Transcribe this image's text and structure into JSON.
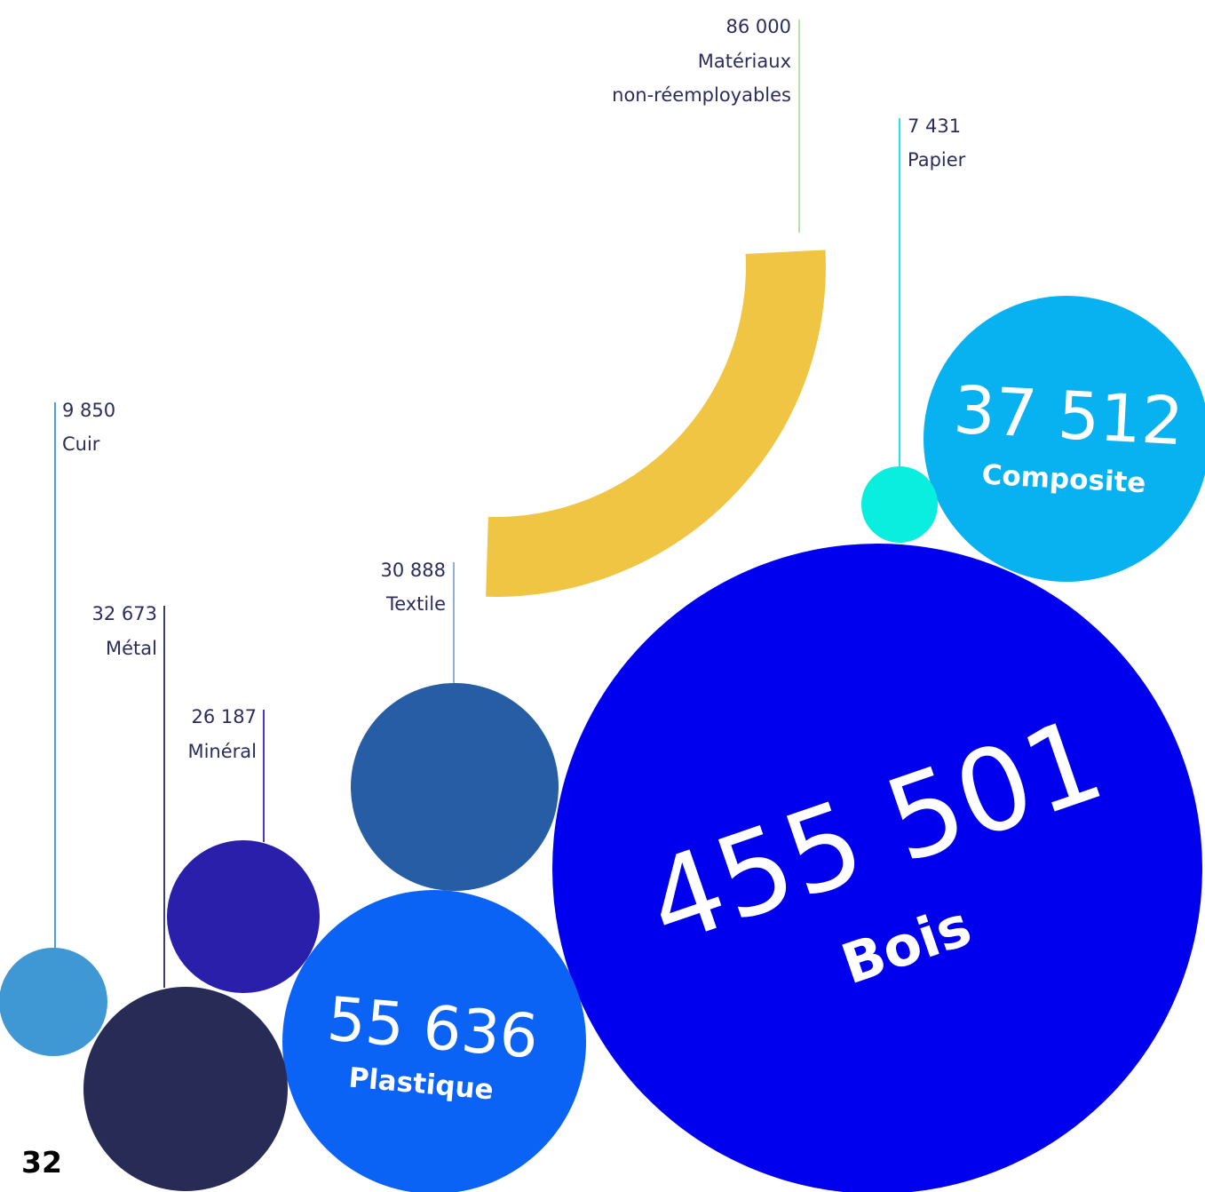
{
  "page_number": "32",
  "chart_data": {
    "type": "bubble",
    "items": [
      {
        "label": "Bois",
        "value_text": "455 501",
        "value": 455501,
        "color": "#0000ee",
        "display": "inside"
      },
      {
        "label": "Plastique",
        "value_text": "55 636",
        "value": 55636,
        "color": "#0b63f6",
        "display": "inside"
      },
      {
        "label": "Composite",
        "value_text": "37 512",
        "value": 37512,
        "color": "#08b2f0",
        "display": "inside"
      },
      {
        "label": "Métal",
        "value_text": "32 673",
        "value": 32673,
        "color": "#292b57",
        "display": "callout"
      },
      {
        "label": "Textile",
        "value_text": "30 888",
        "value": 30888,
        "color": "#265da4",
        "display": "callout"
      },
      {
        "label": "Minéral",
        "value_text": "26 187",
        "value": 26187,
        "color": "#2a1faa",
        "display": "callout"
      },
      {
        "label": "Cuir",
        "value_text": "9 850",
        "value": 9850,
        "color": "#3f98d4",
        "display": "callout"
      },
      {
        "label": "Papier",
        "value_text": "7 431",
        "value": 7431,
        "color": "#0aeee0",
        "display": "callout"
      },
      {
        "label": "Matériaux non-réemployables",
        "label_lines": [
          "Matériaux",
          "non-réemployables"
        ],
        "value_text": "86 000",
        "value": 86000,
        "color": "#f0c544",
        "display": "arc-callout"
      }
    ]
  }
}
